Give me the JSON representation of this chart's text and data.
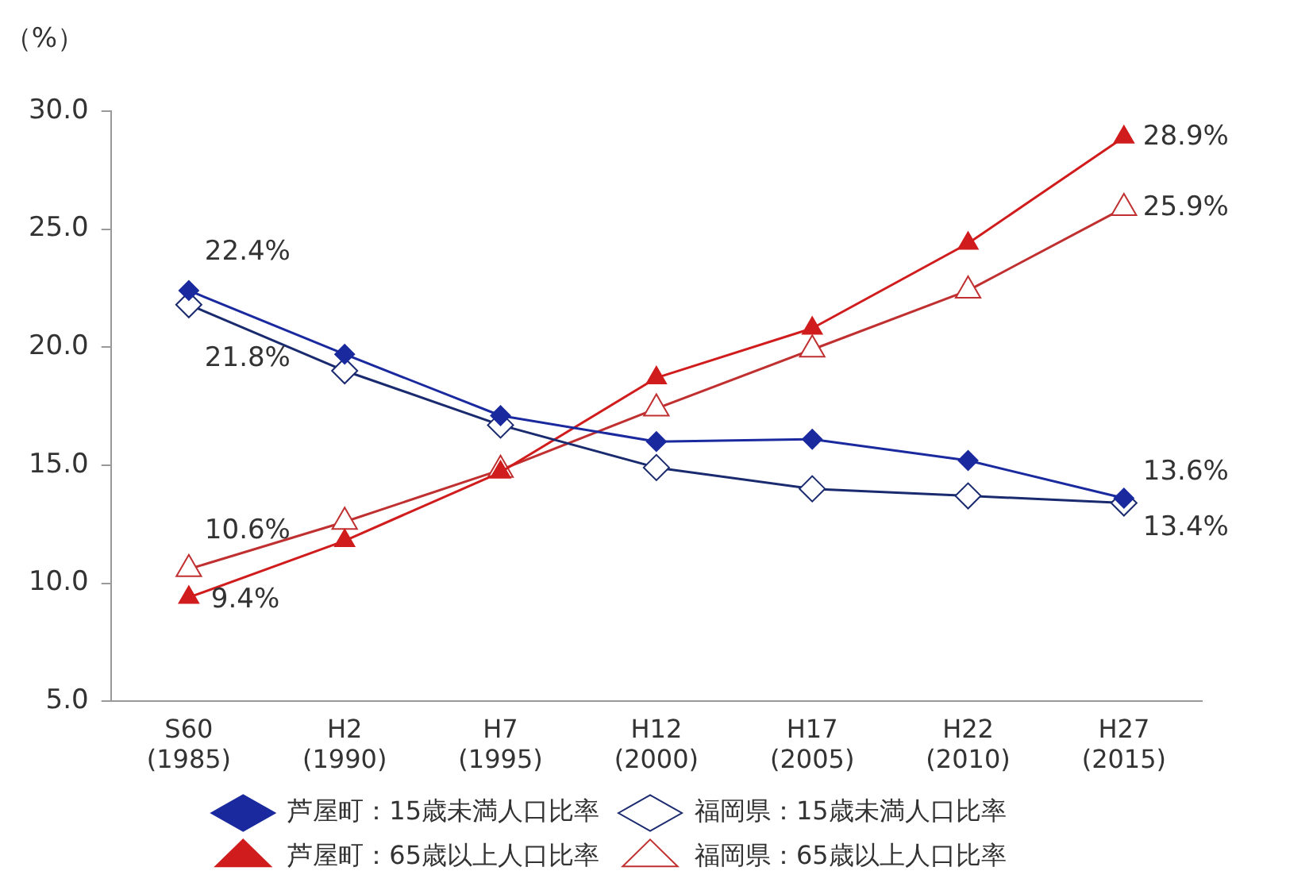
{
  "chart_data": {
    "type": "line",
    "ylabel": "（%）",
    "categories": [
      "S60\n(1985)",
      "H2\n(1990)",
      "H7\n(1995)",
      "H12\n(2000)",
      "H17\n(2005)",
      "H22\n(2010)",
      "H27\n(2015)"
    ],
    "series": [
      {
        "name": "芦屋町：15歳未満人口比率",
        "color": "#1a2a9e",
        "marker": "diamond",
        "values": [
          22.4,
          19.7,
          17.1,
          16.0,
          16.1,
          15.2,
          13.6
        ],
        "value_labels": [
          "22.4%",
          null,
          null,
          null,
          null,
          null,
          "13.6%"
        ]
      },
      {
        "name": "福岡県：15歳未満人口比率",
        "color": "#1a2a6e",
        "marker": "diamond",
        "values": [
          21.8,
          19.0,
          16.7,
          14.9,
          14.0,
          13.7,
          13.4
        ],
        "value_labels": [
          "21.8%",
          null,
          null,
          null,
          null,
          null,
          "13.4%"
        ]
      },
      {
        "name": "芦屋町：65歳以上人口比率",
        "color": "#d01c1c",
        "marker": "triangle",
        "values": [
          9.4,
          11.8,
          14.7,
          18.7,
          20.8,
          24.4,
          28.9
        ],
        "value_labels": [
          "9.4%",
          null,
          null,
          null,
          null,
          null,
          "28.9%"
        ]
      },
      {
        "name": "福岡県：65歳以上人口比率",
        "color": "#c03030",
        "marker": "triangle",
        "values": [
          10.6,
          12.6,
          14.8,
          17.4,
          19.9,
          22.4,
          25.9
        ],
        "value_labels": [
          "10.6%",
          null,
          null,
          null,
          null,
          null,
          "25.9%"
        ]
      }
    ],
    "ylim": [
      5,
      30
    ],
    "yticks": [
      {
        "value": 5,
        "label": "5.0"
      },
      {
        "value": 10,
        "label": "10.0"
      },
      {
        "value": 15,
        "label": "15.0"
      },
      {
        "value": 20,
        "label": "20.0"
      },
      {
        "value": 25,
        "label": "25.0"
      },
      {
        "value": 30,
        "label": "30.0"
      }
    ],
    "grid": false,
    "legend": "bottom"
  }
}
